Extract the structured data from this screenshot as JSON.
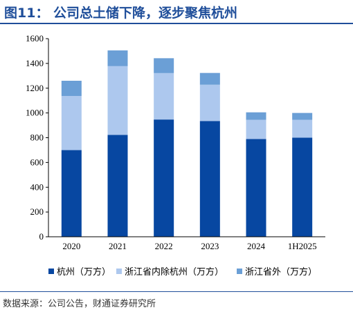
{
  "header": {
    "title": "图11：  公司总土储下降，逐步聚焦杭州"
  },
  "chart_data": {
    "type": "bar",
    "stacked": true,
    "categories": [
      "2020",
      "2021",
      "2022",
      "2023",
      "2024",
      "1H2025"
    ],
    "series": [
      {
        "name": "杭州（万方）",
        "color": "#0747a1",
        "values": [
          700,
          823,
          947,
          935,
          790,
          800
        ]
      },
      {
        "name": "浙江省内除杭州（万方）",
        "color": "#adc8ee",
        "values": [
          437,
          555,
          375,
          293,
          155,
          145
        ]
      },
      {
        "name": "浙江省外（万方）",
        "color": "#6b9fd6",
        "values": [
          123,
          127,
          120,
          95,
          60,
          55
        ]
      }
    ],
    "yticks": [
      0,
      200,
      400,
      600,
      800,
      1000,
      1200,
      1400,
      1600
    ],
    "ylim": [
      0,
      1600
    ],
    "legend_position": "bottom",
    "title": "",
    "xlabel": "",
    "ylabel": ""
  },
  "footer": {
    "source": "数据来源：公司公告，财通证券研究所"
  }
}
